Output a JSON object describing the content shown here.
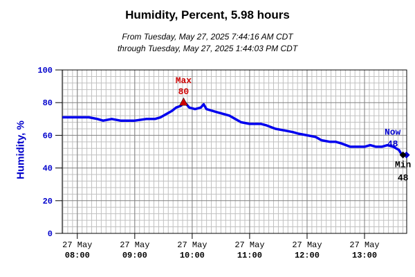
{
  "chart_data": {
    "type": "line",
    "title": "Humidity, Percent, 5.98 hours",
    "subtitle_line1": "From Tuesday, May 27, 2025 7:44:16 AM CDT",
    "subtitle_line2": "through Tuesday, May 27, 2025 1:44:03 PM CDT",
    "ylabel": "Humidity, %",
    "xlabel": "",
    "ylim": [
      0,
      100
    ],
    "yticks": [
      "0",
      "20",
      "40",
      "60",
      "80",
      "100"
    ],
    "xlim_hours": [
      7.7378,
      13.7342
    ],
    "xticks": [
      {
        "hour": 8,
        "line1": "27 May",
        "line2": "08:00"
      },
      {
        "hour": 9,
        "line1": "27 May",
        "line2": "09:00"
      },
      {
        "hour": 10,
        "line1": "27 May",
        "line2": "10:00"
      },
      {
        "hour": 11,
        "line1": "27 May",
        "line2": "11:00"
      },
      {
        "hour": 12,
        "line1": "27 May",
        "line2": "12:00"
      },
      {
        "hour": 13,
        "line1": "27 May",
        "line2": "13:00"
      }
    ],
    "grid": true,
    "series": [
      {
        "color": "#0000ee",
        "x_hours": [
          7.74,
          7.85,
          8.0,
          8.2,
          8.35,
          8.45,
          8.6,
          8.75,
          8.85,
          9.0,
          9.2,
          9.35,
          9.45,
          9.55,
          9.65,
          9.72,
          9.8,
          9.85,
          9.9,
          9.95,
          10.05,
          10.15,
          10.2,
          10.25,
          10.35,
          10.45,
          10.55,
          10.65,
          10.75,
          10.85,
          11.0,
          11.1,
          11.2,
          11.3,
          11.45,
          11.6,
          11.75,
          11.85,
          12.0,
          12.15,
          12.25,
          12.4,
          12.5,
          12.6,
          12.75,
          12.9,
          13.0,
          13.1,
          13.2,
          13.3,
          13.4,
          13.5,
          13.6,
          13.65,
          13.73
        ],
        "values": [
          71,
          71,
          71,
          71,
          70,
          69,
          70,
          69,
          69,
          69,
          70,
          70,
          71,
          73,
          75,
          77,
          78,
          80,
          79,
          77,
          76,
          77,
          79,
          76,
          75,
          74,
          73,
          72,
          70,
          68,
          67,
          67,
          67,
          66,
          64,
          63,
          62,
          61,
          60,
          59,
          57,
          56,
          56,
          55,
          53,
          53,
          53,
          54,
          53,
          53,
          54,
          53,
          51,
          48,
          48
        ]
      }
    ],
    "annotations": {
      "max_label": "Max",
      "max_value": "80",
      "max_hour": 9.85,
      "min_label": "Min",
      "min_value": "48",
      "min_hour": 13.67,
      "now_label": "Now",
      "now_value": "48",
      "now_hour": 13.73,
      "max_color": "#cc0000",
      "min_color": "#000000",
      "now_color": "#0000cc"
    }
  }
}
